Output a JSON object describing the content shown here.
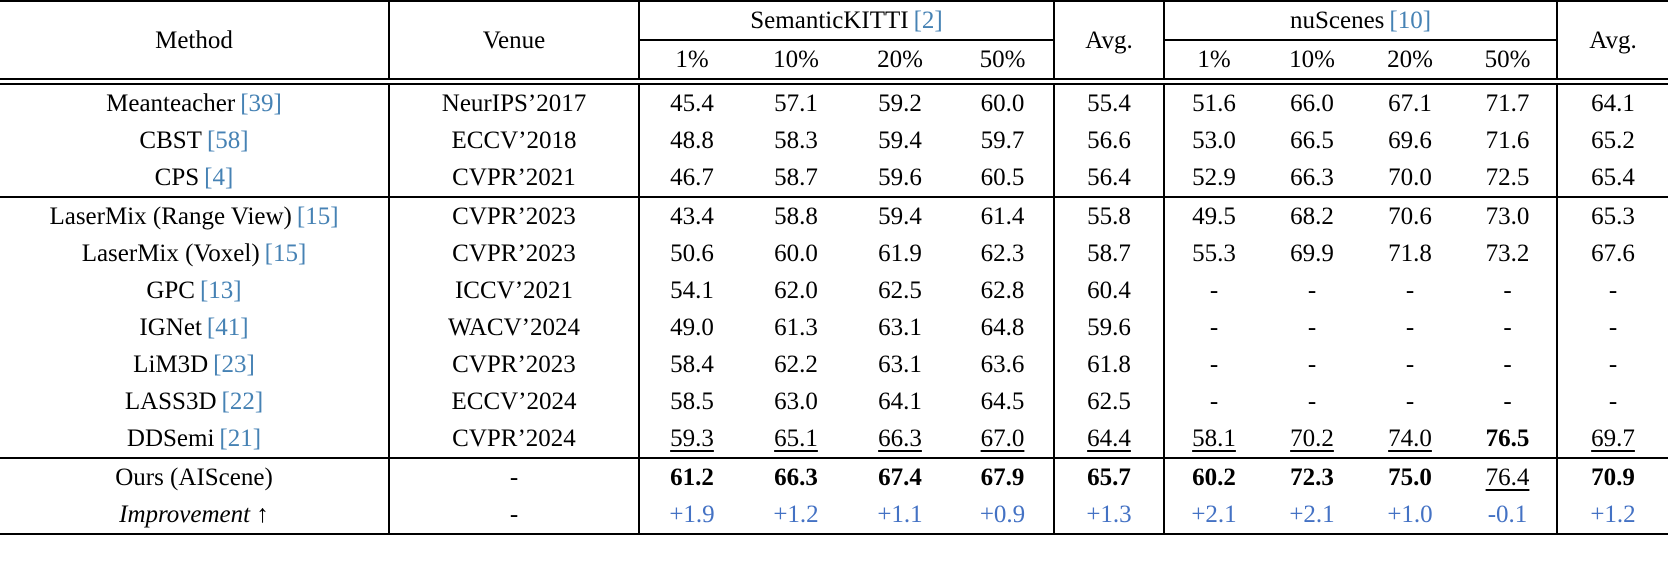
{
  "accent_colors": {
    "citation_blue": "#4682b4",
    "improvement_blue": "#4472c4",
    "text_black": "#000000"
  },
  "header": {
    "method": "Method",
    "venue": "Venue",
    "groups": [
      {
        "title": "SemanticKITTI",
        "cite": "[2]",
        "subcols": [
          "1%",
          "10%",
          "20%",
          "50%"
        ],
        "avg": "Avg."
      },
      {
        "title": "nuScenes",
        "cite": "[10]",
        "subcols": [
          "1%",
          "10%",
          "20%",
          "50%"
        ],
        "avg": "Avg."
      }
    ]
  },
  "rows": [
    {
      "method": "Meanteacher",
      "cite": "[39]",
      "venue": "NeurIPS’2017",
      "values": [
        "45.4",
        "57.1",
        "59.2",
        "60.0",
        "55.4",
        "51.6",
        "66.0",
        "67.1",
        "71.7",
        "64.1"
      ],
      "styles": [
        "n",
        "n",
        "n",
        "n",
        "n",
        "n",
        "n",
        "n",
        "n",
        "n"
      ]
    },
    {
      "method": "CBST",
      "cite": "[58]",
      "venue": "ECCV’2018",
      "values": [
        "48.8",
        "58.3",
        "59.4",
        "59.7",
        "56.6",
        "53.0",
        "66.5",
        "69.6",
        "71.6",
        "65.2"
      ],
      "styles": [
        "n",
        "n",
        "n",
        "n",
        "n",
        "n",
        "n",
        "n",
        "n",
        "n"
      ]
    },
    {
      "method": "CPS",
      "cite": "[4]",
      "venue": "CVPR’2021",
      "values": [
        "46.7",
        "58.7",
        "59.6",
        "60.5",
        "56.4",
        "52.9",
        "66.3",
        "70.0",
        "72.5",
        "65.4"
      ],
      "styles": [
        "n",
        "n",
        "n",
        "n",
        "n",
        "n",
        "n",
        "n",
        "n",
        "n"
      ],
      "separator_below": true
    },
    {
      "method": "LaserMix (Range View)",
      "cite": "[15]",
      "venue": "CVPR’2023",
      "values": [
        "43.4",
        "58.8",
        "59.4",
        "61.4",
        "55.8",
        "49.5",
        "68.2",
        "70.6",
        "73.0",
        "65.3"
      ],
      "styles": [
        "n",
        "n",
        "n",
        "n",
        "n",
        "n",
        "n",
        "n",
        "n",
        "n"
      ]
    },
    {
      "method": "LaserMix (Voxel)",
      "cite": "[15]",
      "venue": "CVPR’2023",
      "values": [
        "50.6",
        "60.0",
        "61.9",
        "62.3",
        "58.7",
        "55.3",
        "69.9",
        "71.8",
        "73.2",
        "67.6"
      ],
      "styles": [
        "n",
        "n",
        "n",
        "n",
        "n",
        "n",
        "n",
        "n",
        "n",
        "n"
      ]
    },
    {
      "method": "GPC",
      "cite": "[13]",
      "venue": "ICCV’2021",
      "values": [
        "54.1",
        "62.0",
        "62.5",
        "62.8",
        "60.4",
        "-",
        "-",
        "-",
        "-",
        "-"
      ],
      "styles": [
        "n",
        "n",
        "n",
        "n",
        "n",
        "n",
        "n",
        "n",
        "n",
        "n"
      ]
    },
    {
      "method": "IGNet",
      "cite": "[41]",
      "venue": "WACV’2024",
      "values": [
        "49.0",
        "61.3",
        "63.1",
        "64.8",
        "59.6",
        "-",
        "-",
        "-",
        "-",
        "-"
      ],
      "styles": [
        "n",
        "n",
        "n",
        "n",
        "n",
        "n",
        "n",
        "n",
        "n",
        "n"
      ]
    },
    {
      "method": "LiM3D",
      "cite": "[23]",
      "venue": "CVPR’2023",
      "values": [
        "58.4",
        "62.2",
        "63.1",
        "63.6",
        "61.8",
        "-",
        "-",
        "-",
        "-",
        "-"
      ],
      "styles": [
        "n",
        "n",
        "n",
        "n",
        "n",
        "n",
        "n",
        "n",
        "n",
        "n"
      ]
    },
    {
      "method": "LASS3D",
      "cite": "[22]",
      "venue": "ECCV’2024",
      "values": [
        "58.5",
        "63.0",
        "64.1",
        "64.5",
        "62.5",
        "-",
        "-",
        "-",
        "-",
        "-"
      ],
      "styles": [
        "n",
        "n",
        "n",
        "n",
        "n",
        "n",
        "n",
        "n",
        "n",
        "n"
      ]
    },
    {
      "method": "DDSemi",
      "cite": "[21]",
      "venue": "CVPR’2024",
      "values": [
        "59.3",
        "65.1",
        "66.3",
        "67.0",
        "64.4",
        "58.1",
        "70.2",
        "74.0",
        "76.5",
        "69.7"
      ],
      "styles": [
        "u",
        "u",
        "u",
        "u",
        "u",
        "u",
        "u",
        "u",
        "b",
        "u"
      ],
      "separator_below": true
    },
    {
      "method": "Ours (AIScene)",
      "cite": "",
      "venue": "-",
      "values": [
        "61.2",
        "66.3",
        "67.4",
        "67.9",
        "65.7",
        "60.2",
        "72.3",
        "75.0",
        "76.4",
        "70.9"
      ],
      "styles": [
        "b",
        "b",
        "b",
        "b",
        "b",
        "b",
        "b",
        "b",
        "u",
        "b"
      ]
    },
    {
      "method": "Improvement ↑",
      "cite": "",
      "venue": "-",
      "method_style": "italic",
      "values": [
        "+1.9",
        "+1.2",
        "+1.1",
        "+0.9",
        "+1.3",
        "+2.1",
        "+2.1",
        "+1.0",
        "-0.1",
        "+1.2"
      ],
      "styles": [
        "c",
        "c",
        "c",
        "c",
        "c",
        "c",
        "c",
        "c",
        "c",
        "c"
      ]
    }
  ]
}
